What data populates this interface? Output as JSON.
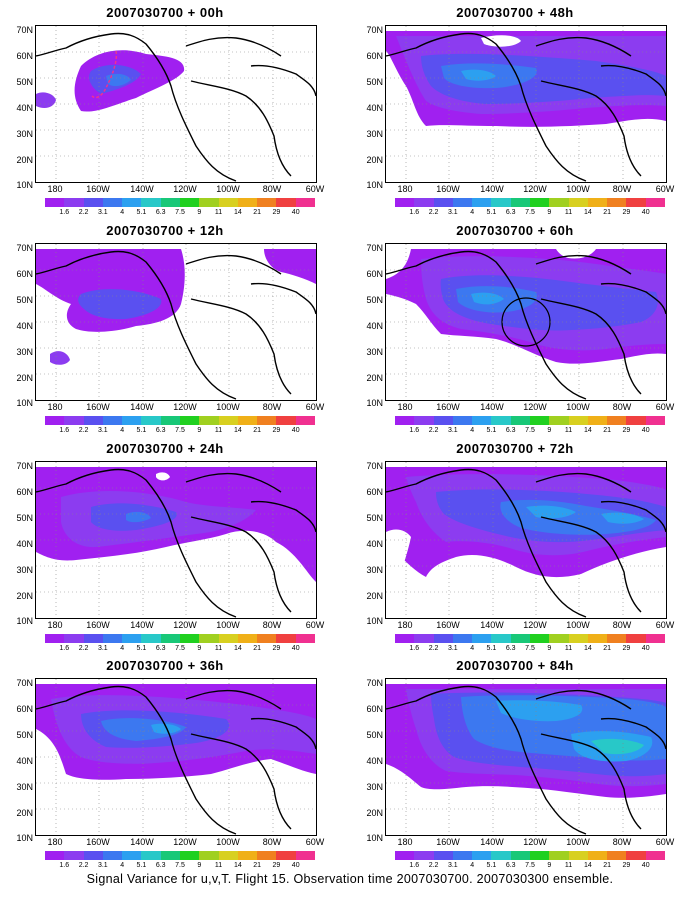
{
  "caption": "Signal Variance for u,v,T. Flight 15. Observation time 2007030700. 2007030300 ensemble.",
  "map": {
    "latitude_labels": [
      "70N",
      "60N",
      "50N",
      "40N",
      "30N",
      "20N",
      "10N"
    ],
    "longitude_labels": [
      "180",
      "160W",
      "140W",
      "120W",
      "100W",
      "80W",
      "60W"
    ]
  },
  "colorbar": {
    "colors": [
      "#a020f0",
      "#8c3cf0",
      "#5a50f0",
      "#3c78f0",
      "#2ca0f0",
      "#28c8c8",
      "#18c878",
      "#20d020",
      "#a0d020",
      "#d8d020",
      "#f0b018",
      "#f08020",
      "#f04040",
      "#f03090"
    ],
    "labels": [
      "1.6",
      "2.2",
      "3.1",
      "4",
      "5.1",
      "6.3",
      "7.5",
      "9",
      "11",
      "14",
      "21",
      "29",
      "40"
    ]
  },
  "panels": [
    {
      "title": "2007030700 + 00h"
    },
    {
      "title": "2007030700 + 48h"
    },
    {
      "title": "2007030700 + 12h"
    },
    {
      "title": "2007030700 + 60h"
    },
    {
      "title": "2007030700 + 24h"
    },
    {
      "title": "2007030700 + 72h"
    },
    {
      "title": "2007030700 + 36h"
    },
    {
      "title": "2007030700 + 84h"
    }
  ]
}
